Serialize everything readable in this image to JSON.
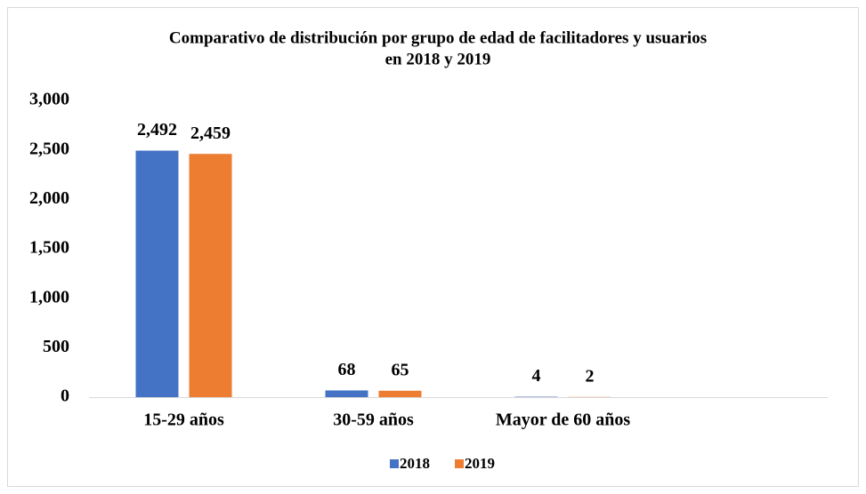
{
  "chart_data": {
    "type": "bar",
    "title": [
      "Comparativo de distribución por grupo de edad de facilitadores y usuarios",
      "en 2018 y 2019"
    ],
    "categories": [
      "15-29 años",
      "30-59 años",
      "Mayor de 60 años"
    ],
    "series": [
      {
        "name": "2018",
        "color": "#4472c4",
        "values": [
          2492,
          68,
          4
        ],
        "value_labels": [
          "2,492",
          "68",
          "4"
        ]
      },
      {
        "name": "2019",
        "color": "#ed7d31",
        "values": [
          2459,
          65,
          2
        ],
        "value_labels": [
          "2,459",
          "65",
          "2"
        ]
      }
    ],
    "ylim": [
      0,
      3000
    ],
    "yticks": [
      0,
      500,
      {
        "value": 1000,
        "label": "1,000"
      },
      {
        "value": 1500,
        "label": "1,500"
      },
      {
        "value": 2000,
        "label": "2,000"
      },
      {
        "value": 2500,
        "label": "2,500"
      },
      {
        "value": 3000,
        "label": "3,000"
      }
    ],
    "grid": false,
    "legend": "bottom"
  }
}
